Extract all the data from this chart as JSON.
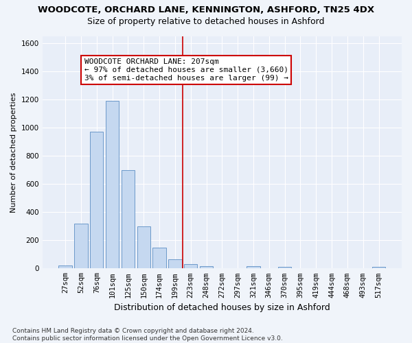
{
  "title": "WOODCOTE, ORCHARD LANE, KENNINGTON, ASHFORD, TN25 4DX",
  "subtitle": "Size of property relative to detached houses in Ashford",
  "xlabel": "Distribution of detached houses by size in Ashford",
  "ylabel": "Number of detached properties",
  "categories": [
    "27sqm",
    "52sqm",
    "76sqm",
    "101sqm",
    "125sqm",
    "150sqm",
    "174sqm",
    "199sqm",
    "223sqm",
    "248sqm",
    "272sqm",
    "297sqm",
    "321sqm",
    "346sqm",
    "370sqm",
    "395sqm",
    "419sqm",
    "444sqm",
    "468sqm",
    "493sqm",
    "517sqm"
  ],
  "values": [
    20,
    320,
    970,
    1190,
    700,
    300,
    150,
    65,
    30,
    15,
    0,
    0,
    15,
    0,
    10,
    0,
    0,
    0,
    0,
    0,
    10
  ],
  "bar_color": "#c5d8f0",
  "bar_edge_color": "#5b8ec4",
  "vline_color": "#cc0000",
  "vline_x_index": 7.5,
  "annotation_text": "WOODCOTE ORCHARD LANE: 207sqm\n← 97% of detached houses are smaller (3,660)\n3% of semi-detached houses are larger (99) →",
  "annotation_box_facecolor": "#ffffff",
  "annotation_box_edgecolor": "#cc0000",
  "ylim": [
    0,
    1650
  ],
  "yticks": [
    0,
    200,
    400,
    600,
    800,
    1000,
    1200,
    1400,
    1600
  ],
  "fig_facecolor": "#f0f4fa",
  "ax_facecolor": "#e8eef8",
  "footer": "Contains HM Land Registry data © Crown copyright and database right 2024.\nContains public sector information licensed under the Open Government Licence v3.0.",
  "title_fontsize": 9.5,
  "subtitle_fontsize": 9,
  "xlabel_fontsize": 9,
  "ylabel_fontsize": 8,
  "tick_fontsize": 7.5,
  "annotation_fontsize": 8,
  "footer_fontsize": 6.5
}
